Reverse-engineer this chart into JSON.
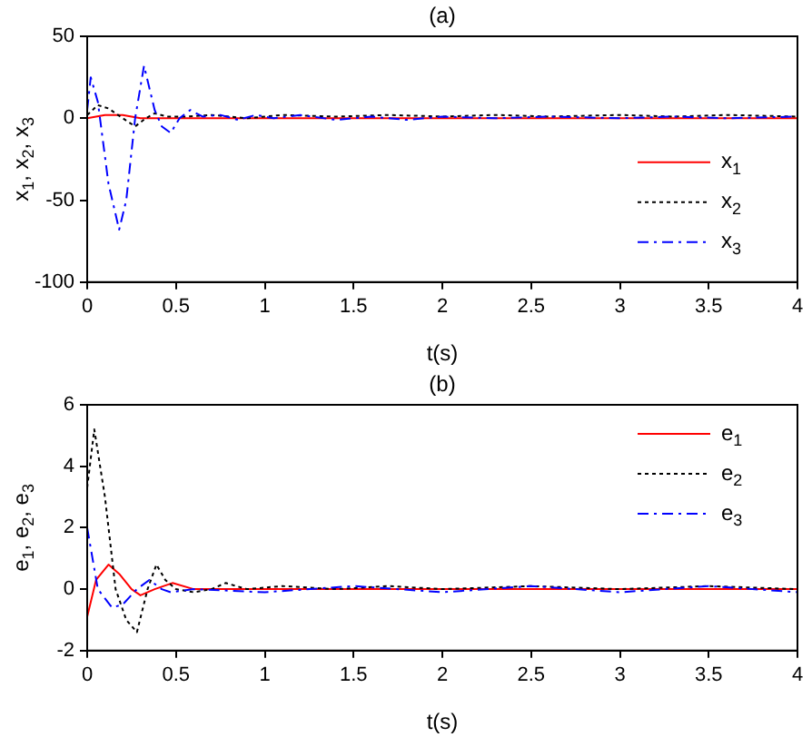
{
  "chart_data": [
    {
      "type": "line",
      "title": "(a)",
      "xlabel": "t(s)",
      "ylabel": "x$_{1}$, x$_{2}$, x$_{3}$",
      "xlim": [
        0,
        4
      ],
      "xticks": [
        0,
        0.5,
        1,
        1.5,
        2,
        2.5,
        3,
        3.5,
        4
      ],
      "ylim": [
        -100,
        50
      ],
      "yticks": [
        -100,
        -50,
        0,
        50
      ],
      "grid": false,
      "legend": "right",
      "marker": "none",
      "series": [
        {
          "name": "x$_{1}$",
          "color": "#ff0000",
          "line_style": "solid",
          "x": [
            0,
            0.05,
            0.1,
            0.15,
            0.2,
            0.25,
            0.3,
            0.4,
            0.6,
            1,
            1.5,
            2,
            2.5,
            3,
            3.5,
            4
          ],
          "values": [
            0,
            1,
            2,
            2,
            2,
            1,
            0,
            0,
            0,
            0,
            0,
            0,
            0,
            0,
            0,
            0
          ]
        },
        {
          "name": "x$_{2}$",
          "color": "#000000",
          "line_style": "dotted",
          "x": [
            0,
            0.06,
            0.12,
            0.2,
            0.27,
            0.33,
            0.38,
            0.45,
            0.55,
            0.7,
            0.9,
            1.1,
            1.4,
            1.7,
            2,
            2.3,
            2.6,
            3,
            3.3,
            3.6,
            4
          ],
          "values": [
            2,
            8,
            6,
            0,
            -5,
            0,
            3,
            1,
            1,
            2,
            0,
            2,
            1,
            2,
            1,
            2,
            1,
            2,
            1,
            2,
            1
          ]
        },
        {
          "name": "x$_{3}$",
          "color": "#0000ff",
          "line_style": "dashed",
          "x": [
            0,
            0.02,
            0.06,
            0.12,
            0.18,
            0.22,
            0.27,
            0.32,
            0.38,
            0.42,
            0.47,
            0.52,
            0.58,
            0.65,
            0.75,
            0.85,
            0.95,
            1.05,
            1.2,
            1.4,
            1.6,
            1.8,
            2,
            2.3,
            2.6,
            3,
            3.3,
            3.6,
            4
          ],
          "values": [
            5,
            25,
            10,
            -40,
            -68,
            -50,
            0,
            32,
            5,
            -5,
            -9,
            0,
            5,
            1,
            2,
            -1,
            2,
            0,
            2,
            -1,
            1,
            -1,
            1,
            0,
            1,
            0,
            1,
            0,
            1
          ]
        }
      ]
    },
    {
      "type": "line",
      "title": "(b)",
      "xlabel": "t(s)",
      "ylabel": "e$_{1}$, e$_{2}$, e$_{3}$",
      "xlim": [
        0,
        4
      ],
      "xticks": [
        0,
        0.5,
        1,
        1.5,
        2,
        2.5,
        3,
        3.5,
        4
      ],
      "ylim": [
        -2,
        6
      ],
      "yticks": [
        -2,
        0,
        2,
        4,
        6
      ],
      "grid": false,
      "legend": "top right",
      "marker": "none",
      "series": [
        {
          "name": "e$_{1}$",
          "color": "#ff0000",
          "line_style": "solid",
          "x": [
            0,
            0.05,
            0.12,
            0.18,
            0.25,
            0.3,
            0.38,
            0.48,
            0.6,
            1,
            1.5,
            2,
            2.5,
            3,
            3.5,
            4
          ],
          "values": [
            -0.9,
            0.3,
            0.8,
            0.5,
            0,
            -0.2,
            0,
            0.2,
            0,
            0,
            0,
            0,
            0,
            0,
            0,
            0
          ]
        },
        {
          "name": "e$_{2}$",
          "color": "#000000",
          "line_style": "dotted",
          "x": [
            0,
            0.04,
            0.1,
            0.16,
            0.22,
            0.28,
            0.34,
            0.39,
            0.44,
            0.5,
            0.6,
            0.7,
            0.78,
            0.9,
            1.1,
            1.4,
            1.7,
            2,
            2.5,
            3,
            3.5,
            4
          ],
          "values": [
            3.3,
            5.2,
            3,
            0,
            -1,
            -1.4,
            0,
            0.8,
            0.3,
            0,
            -0.1,
            0,
            0.2,
            0,
            0.1,
            0,
            0.1,
            0,
            0.1,
            0,
            0.1,
            0
          ]
        },
        {
          "name": "e$_{3}$",
          "color": "#0000ff",
          "line_style": "dashed",
          "x": [
            0,
            0.06,
            0.14,
            0.2,
            0.28,
            0.35,
            0.42,
            0.47,
            0.6,
            1,
            1.5,
            2,
            2.5,
            3,
            3.5,
            4
          ],
          "values": [
            2,
            0,
            -0.6,
            -0.5,
            0,
            0.3,
            0,
            -0.1,
            0,
            -0.1,
            0.1,
            -0.1,
            0.1,
            -0.1,
            0.1,
            -0.1
          ]
        }
      ]
    }
  ]
}
